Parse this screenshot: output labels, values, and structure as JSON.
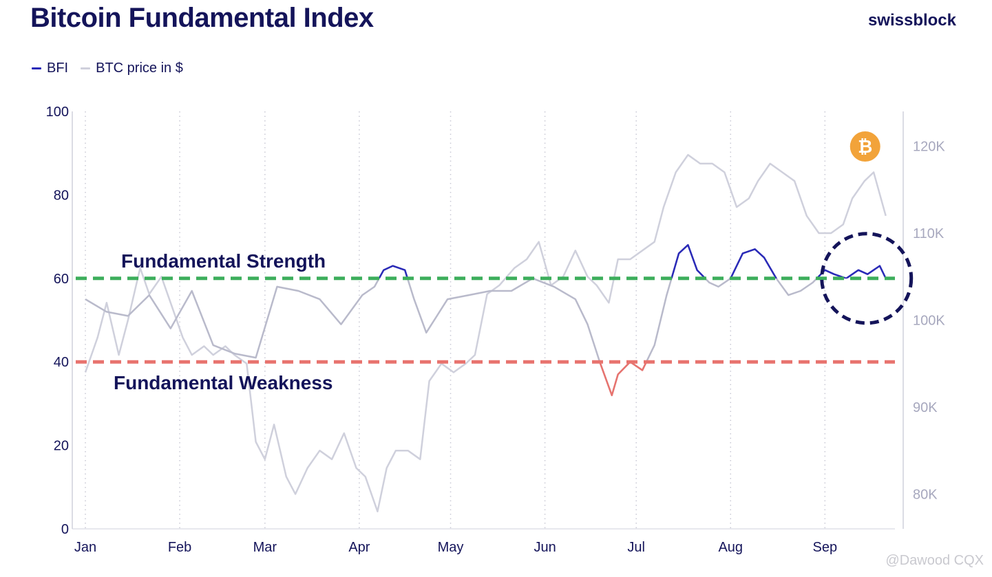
{
  "title": "Bitcoin Fundamental Index",
  "brand": "swissblock",
  "watermark": "@Dawood CQX",
  "colors": {
    "bfi": "#2a2ab8",
    "bfi_weak": "#e8736e",
    "btc": "#cfd0dc",
    "strength_line": "#3dae5c",
    "weakness_line": "#e8736e",
    "highlight_circle": "#14145a",
    "bitcoin_badge": "#f2a33a"
  },
  "chart_data": {
    "type": "line",
    "legend": [
      "BFI",
      "BTC price in $"
    ],
    "legend_position": "top-left",
    "xlabel": "",
    "ylabel_left": "",
    "ylabel_right": "",
    "x_ticks": [
      "Jan",
      "Feb",
      "Mar",
      "Apr",
      "May",
      "Jun",
      "Jul",
      "Aug",
      "Sep"
    ],
    "y_left_ticks": [
      "0",
      "20",
      "40",
      "60",
      "80",
      "100"
    ],
    "y_right_ticks": [
      "80K",
      "90K",
      "100K",
      "110K",
      "120K"
    ],
    "ylim_left": [
      0,
      100
    ],
    "ylim_right": [
      76,
      124
    ],
    "grid": "vertical dotted at month starts",
    "thresholds": [
      {
        "label": "Fundamental Strength",
        "value": 60
      },
      {
        "label": "Fundamental Weakness",
        "value": 40
      }
    ],
    "series": [
      {
        "name": "BFI",
        "axis": "left",
        "x": [
          "2025-01-01",
          "2025-01-08",
          "2025-01-15",
          "2025-01-22",
          "2025-01-29",
          "2025-02-05",
          "2025-02-12",
          "2025-02-19",
          "2025-02-26",
          "2025-03-05",
          "2025-03-12",
          "2025-03-19",
          "2025-03-26",
          "2025-04-02",
          "2025-04-06",
          "2025-04-09",
          "2025-04-12",
          "2025-04-16",
          "2025-04-19",
          "2025-04-23",
          "2025-04-30",
          "2025-05-07",
          "2025-05-14",
          "2025-05-21",
          "2025-05-28",
          "2025-06-04",
          "2025-06-11",
          "2025-06-15",
          "2025-06-19",
          "2025-06-23",
          "2025-06-25",
          "2025-06-29",
          "2025-07-03",
          "2025-07-07",
          "2025-07-11",
          "2025-07-15",
          "2025-07-18",
          "2025-07-21",
          "2025-07-25",
          "2025-07-28",
          "2025-08-01",
          "2025-08-05",
          "2025-08-09",
          "2025-08-12",
          "2025-08-16",
          "2025-08-20",
          "2025-08-24",
          "2025-08-28",
          "2025-09-01",
          "2025-09-04",
          "2025-09-08",
          "2025-09-12",
          "2025-09-15",
          "2025-09-19",
          "2025-09-21"
        ],
        "values": [
          55,
          52,
          51,
          56,
          48,
          57,
          44,
          42,
          41,
          58,
          57,
          55,
          49,
          56,
          58,
          62,
          63,
          62,
          55,
          47,
          55,
          56,
          57,
          57,
          60,
          58,
          55,
          49,
          40,
          32,
          37,
          40,
          38,
          44,
          56,
          66,
          68,
          62,
          59,
          58,
          60,
          66,
          67,
          65,
          60,
          56,
          57,
          59,
          62,
          61,
          60,
          62,
          61,
          63,
          60
        ]
      },
      {
        "name": "BTC price in $",
        "axis": "right",
        "x": [
          "2025-01-01",
          "2025-01-05",
          "2025-01-08",
          "2025-01-12",
          "2025-01-15",
          "2025-01-19",
          "2025-01-22",
          "2025-01-26",
          "2025-01-29",
          "2025-02-02",
          "2025-02-05",
          "2025-02-09",
          "2025-02-12",
          "2025-02-16",
          "2025-02-19",
          "2025-02-23",
          "2025-02-26",
          "2025-03-01",
          "2025-03-04",
          "2025-03-08",
          "2025-03-11",
          "2025-03-15",
          "2025-03-19",
          "2025-03-23",
          "2025-03-27",
          "2025-03-31",
          "2025-04-03",
          "2025-04-07",
          "2025-04-10",
          "2025-04-13",
          "2025-04-17",
          "2025-04-21",
          "2025-04-24",
          "2025-04-28",
          "2025-05-02",
          "2025-05-06",
          "2025-05-09",
          "2025-05-13",
          "2025-05-17",
          "2025-05-22",
          "2025-05-26",
          "2025-05-30",
          "2025-06-03",
          "2025-06-07",
          "2025-06-11",
          "2025-06-15",
          "2025-06-18",
          "2025-06-22",
          "2025-06-25",
          "2025-06-29",
          "2025-07-03",
          "2025-07-07",
          "2025-07-10",
          "2025-07-14",
          "2025-07-18",
          "2025-07-22",
          "2025-07-26",
          "2025-07-30",
          "2025-08-03",
          "2025-08-07",
          "2025-08-10",
          "2025-08-14",
          "2025-08-18",
          "2025-08-22",
          "2025-08-26",
          "2025-08-30",
          "2025-09-03",
          "2025-09-07",
          "2025-09-10",
          "2025-09-14",
          "2025-09-17",
          "2025-09-21"
        ],
        "values": [
          94,
          98,
          102,
          96,
          100,
          106,
          103,
          105,
          102,
          98,
          96,
          97,
          96,
          97,
          96,
          95,
          86,
          84,
          88,
          82,
          80,
          83,
          85,
          84,
          87,
          83,
          82,
          78,
          83,
          85,
          85,
          84,
          93,
          95,
          94,
          95,
          96,
          103,
          104,
          106,
          107,
          109,
          104,
          105,
          108,
          105,
          104,
          102,
          107,
          107,
          108,
          109,
          113,
          117,
          119,
          118,
          118,
          117,
          113,
          114,
          116,
          118,
          117,
          116,
          112,
          110,
          110,
          111,
          114,
          116,
          117,
          112
        ]
      }
    ]
  }
}
